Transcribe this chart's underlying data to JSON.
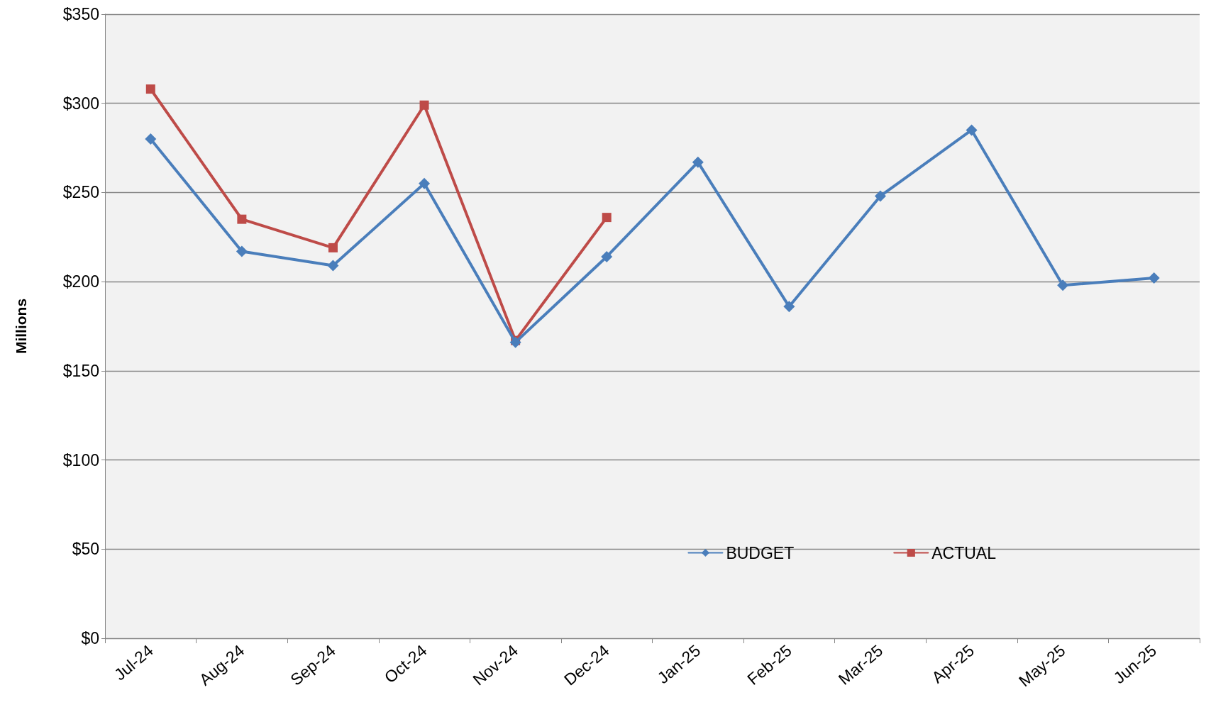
{
  "chart_data": {
    "type": "line",
    "ylabel": "Millions",
    "categories": [
      "Jul-24",
      "Aug-24",
      "Sep-24",
      "Oct-24",
      "Nov-24",
      "Dec-24",
      "Jan-25",
      "Feb-25",
      "Mar-25",
      "Apr-25",
      "May-25",
      "Jun-25"
    ],
    "series": [
      {
        "name": "BUDGET",
        "color": "#4a7ebb",
        "marker": "diamond",
        "values": [
          280,
          217,
          209,
          255,
          166,
          214,
          267,
          186,
          248,
          285,
          198,
          202
        ]
      },
      {
        "name": "ACTUAL",
        "color": "#be4b48",
        "marker": "square",
        "values": [
          308,
          235,
          219,
          299,
          167,
          236,
          null,
          null,
          null,
          null,
          null,
          null
        ]
      }
    ],
    "ylim": [
      0,
      350
    ],
    "yticks": [
      {
        "value": 0,
        "label": "$0"
      },
      {
        "value": 50,
        "label": "$50"
      },
      {
        "value": 100,
        "label": "$100"
      },
      {
        "value": 150,
        "label": "$150"
      },
      {
        "value": 200,
        "label": "$200"
      },
      {
        "value": 250,
        "label": "$250"
      },
      {
        "value": 300,
        "label": "$300"
      },
      {
        "value": 350,
        "label": "$350"
      }
    ],
    "grid": "y",
    "legend": "bottom right",
    "line_style": "solid"
  }
}
